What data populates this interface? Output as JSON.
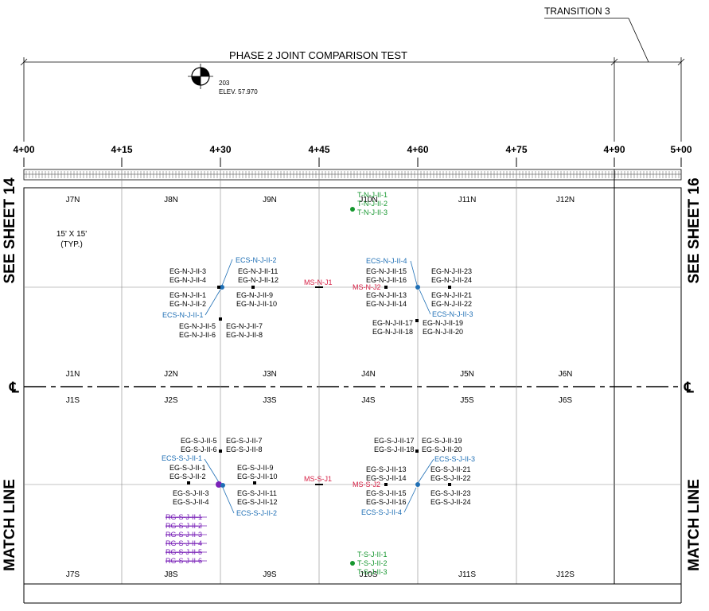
{
  "header": {
    "transition": "TRANSITION 3",
    "title": "PHASE 2 JOINT COMPARISON TEST",
    "benchmark_number": "203",
    "benchmark_elev": "ELEV. 57.970"
  },
  "stations": [
    "4+00",
    "4+15",
    "4+30",
    "4+45",
    "4+60",
    "4+75",
    "4+90",
    "5+00"
  ],
  "side_labels": {
    "left_top": "SEE SHEET 14",
    "right_top": "SEE SHEET 16",
    "left_bottom": "MATCH LINE",
    "right_bottom": "MATCH LINE",
    "centerline": "℄"
  },
  "slabs": {
    "north_top": [
      "J7N",
      "J8N",
      "J9N",
      "J10N",
      "J11N",
      "J12N"
    ],
    "north_bottom": [
      "J1N",
      "J2N",
      "J3N",
      "J4N",
      "J5N",
      "J6N"
    ],
    "south_top": [
      "J1S",
      "J2S",
      "J3S",
      "J4S",
      "J5S",
      "J6S"
    ],
    "south_bottom": [
      "J7S",
      "J8S",
      "J9S",
      "J10S",
      "J11S",
      "J12S"
    ]
  },
  "typical_note": [
    "15' X 15'",
    "(TYP.)"
  ],
  "north_gauges": {
    "g1_left": [
      "EG-N-J-II-3",
      "EG-N-J-II-4"
    ],
    "g1_ecs_top": "ECS-N-J-II-2",
    "g1_right": [
      "EG-N-J-II-11",
      "EG-N-J-II-12"
    ],
    "g1_left2": [
      "EG-N-J-II-1",
      "EG-N-J-II-2"
    ],
    "g1_right2": [
      "EG-N-J-II-9",
      "EG-N-J-II-10"
    ],
    "g1_ecs_bottom": "ECS-N-J-II-1",
    "g1_left3": [
      "EG-N-J-II-5",
      "EG-N-J-II-6"
    ],
    "g1_right3": [
      "EG-N-J-II-7",
      "EG-N-J-II-8"
    ],
    "ms1": "MS-N-J1",
    "ms2": "MS-N-J2",
    "t": [
      "T-N-J-II-1",
      "T-N-J-II-2",
      "T-N-J-II-3"
    ],
    "g2_ecs_top": "ECS-N-J-II-4",
    "g2_left": [
      "EG-N-J-II-15",
      "EG-N-J-II-16"
    ],
    "g2_right": [
      "EG-N-J-II-23",
      "EG-N-J-II-24"
    ],
    "g2_left2": [
      "EG-N-J-II-13",
      "EG-N-J-II-14"
    ],
    "g2_right2": [
      "EG-N-J-II-21",
      "EG-N-J-II-22"
    ],
    "g2_ecs_bottom": "ECS-N-J-II-3",
    "g2_left3": [
      "EG-N-J-II-17",
      "EG-N-J-II-18"
    ],
    "g2_right3": [
      "EG-N-J-II-19",
      "EG-N-J-II-20"
    ]
  },
  "south_gauges": {
    "g1_left3": [
      "EG-S-J-II-5",
      "EG-S-J-II-6"
    ],
    "g1_right3": [
      "EG-S-J-II-7",
      "EG-S-J-II-8"
    ],
    "g1_ecs_top": "ECS-S-J-II-1",
    "g1_left2": [
      "EG-S-J-II-1",
      "EG-S-J-II-2"
    ],
    "g1_right2": [
      "EG-S-J-II-9",
      "EG-S-J-II-10"
    ],
    "g1_left": [
      "EG-S-J-II-3",
      "EG-S-J-II-4"
    ],
    "g1_right": [
      "EG-S-J-II-11",
      "EG-S-J-II-12"
    ],
    "g1_ecs_bottom": "ECS-S-J-II-2",
    "rg": [
      "RG-S-J-II-1",
      "RG-S-J-II-2",
      "RG-S-J-II-3",
      "RG-S-J-II-4",
      "RG-S-J-II-5",
      "RG-S-J-II-6"
    ],
    "ms1": "MS-S-J1",
    "ms2": "MS-S-J2",
    "g2_left3": [
      "EG-S-J-II-17",
      "EG-S-J-II-18"
    ],
    "g2_right3": [
      "EG-S-J-II-19",
      "EG-S-J-II-20"
    ],
    "g2_ecs_top": "ECS-S-J-II-3",
    "g2_left2": [
      "EG-S-J-II-13",
      "EG-S-J-II-14"
    ],
    "g2_right2": [
      "EG-S-J-II-21",
      "EG-S-J-II-22"
    ],
    "g2_left": [
      "EG-S-J-II-15",
      "EG-S-J-II-16"
    ],
    "g2_right": [
      "EG-S-J-II-23",
      "EG-S-J-II-24"
    ],
    "g2_ecs_bottom": "ECS-S-J-II-4",
    "t": [
      "T-S-J-II-1",
      "T-S-J-II-2",
      "T-S-J-II-3"
    ]
  },
  "colors": {
    "ecs": "#1f6fb5",
    "ms": "#d62045",
    "t": "#16972f",
    "rg": "#7a22b8"
  }
}
